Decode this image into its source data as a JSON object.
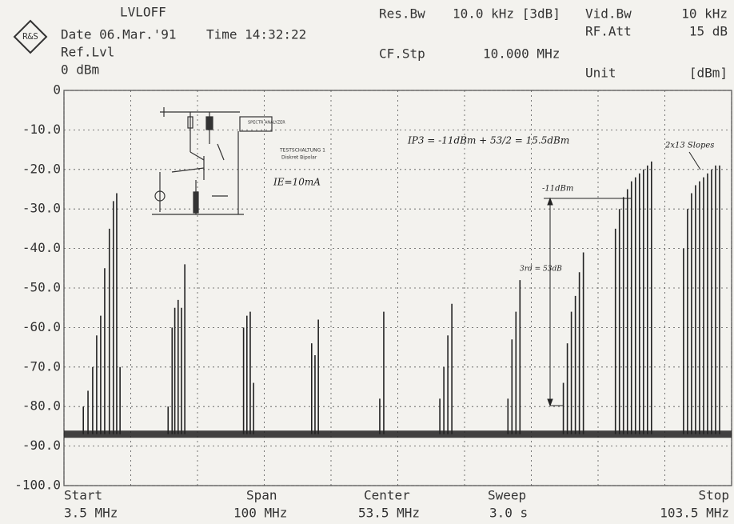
{
  "header": {
    "status": "LVLOFF",
    "date": "Date 06.Mar.'91",
    "time": "Time 14:32:22",
    "ref_label": "Ref.Lvl",
    "ref_value": "0 dBm",
    "res_bw_label": "Res.Bw",
    "res_bw_value": "10.0 kHz [3dB]",
    "vid_bw_label": "Vid.Bw",
    "vid_bw_value": "10 kHz",
    "rf_att_label": "RF.Att",
    "rf_att_value": "15 dB",
    "cf_stp_label": "CF.Stp",
    "cf_stp_value": "10.000 MHz",
    "unit_label": "Unit",
    "unit_value": "[dBm]"
  },
  "footer": {
    "start_label": "Start",
    "start_value": "3.5 MHz",
    "span_label": "Span",
    "span_value": "100 MHz",
    "center_label": "Center",
    "center_value": "53.5 MHz",
    "sweep_label": "Sweep",
    "sweep_value": "3.0 s",
    "stop_label": "Stop",
    "stop_value": "103.5 MHz"
  },
  "notes": {
    "ip3": "IP3 = -11dBm + 53/2 = 15.5dBm",
    "level": "-11dBm",
    "third": "3rd = 53dB",
    "slopes": "2x13 Slopes",
    "current": "IE=10mA",
    "circuit_title": "TESTSCHALTUNG 1",
    "circuit_sub": "Diskret Bipolar"
  },
  "chart_data": {
    "type": "stem",
    "color": "#222",
    "x": [
      6.4,
      7.1,
      7.8,
      8.4,
      9.0,
      9.6,
      10.3,
      10.9,
      11.4,
      11.9,
      19.1,
      19.7,
      20.1,
      20.6,
      21.1,
      21.6,
      30.4,
      30.9,
      31.4,
      31.9,
      40.6,
      41.1,
      41.6,
      50.8,
      51.4,
      59.8,
      60.4,
      61.0,
      61.6,
      70.0,
      70.6,
      71.2,
      71.8,
      78.3,
      78.9,
      79.5,
      80.1,
      80.7,
      81.3,
      86.1,
      86.7,
      87.3,
      87.9,
      88.5,
      89.1,
      89.7,
      90.3,
      90.9,
      91.5,
      96.3,
      96.9,
      97.5,
      98.1,
      98.7,
      99.3,
      99.9,
      100.5,
      101.1,
      101.7
    ],
    "values": [
      -80,
      -76,
      -70,
      -62,
      -57,
      -45,
      -35,
      -28,
      -26,
      -70,
      -80,
      -60,
      -55,
      -53,
      -55,
      -44,
      -60,
      -57,
      -56,
      -74,
      -64,
      -67,
      -58,
      -78,
      -56,
      -78,
      -70,
      -62,
      -54,
      -78,
      -63,
      -56,
      -48,
      -74,
      -64,
      -56,
      -52,
      -46,
      -41,
      -35,
      -30,
      -27,
      -25,
      -23,
      -22,
      -21,
      -20,
      -19,
      -18,
      -40,
      -30,
      -26,
      -24,
      -23,
      -22,
      -21,
      -20,
      -19,
      -19
    ],
    "noise_floor": -87,
    "xlim": [
      3.5,
      103.5
    ],
    "xticks": [
      3.5,
      13.5,
      23.5,
      33.5,
      43.5,
      53.5,
      63.5,
      73.5,
      83.5,
      93.5,
      103.5
    ],
    "ylim": [
      -100,
      0
    ],
    "yticks": [
      0,
      {
        "value": -10,
        "label": "-10.0"
      },
      {
        "value": -20,
        "label": "-20.0"
      },
      {
        "value": -30,
        "label": "-30.0"
      },
      {
        "value": -40,
        "label": "-40.0"
      },
      {
        "value": -50,
        "label": "-50.0"
      },
      {
        "value": -60,
        "label": "-60.0"
      },
      {
        "value": -70,
        "label": "-70.0"
      },
      {
        "value": -80,
        "label": "-80.0"
      },
      {
        "value": -90,
        "label": "-90.0"
      },
      {
        "value": -100,
        "label": "-100.0"
      }
    ],
    "grid": true
  }
}
